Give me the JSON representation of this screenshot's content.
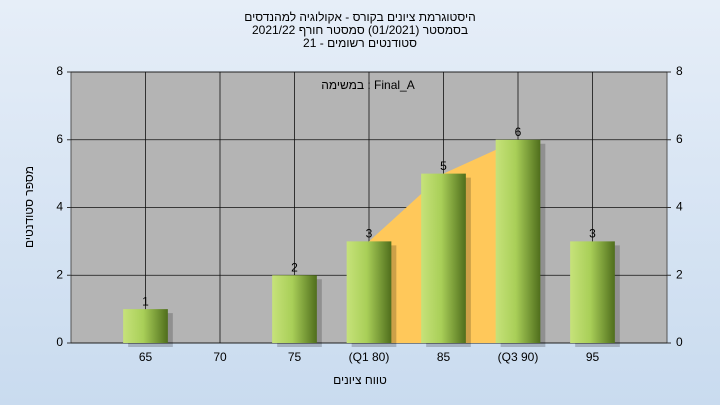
{
  "chart_data": {
    "type": "bar",
    "title": [
      "היסטוגרמת ציונים בקורס - אקולוגיה למהנדסים",
      "בסמסטר  (01/2021)  סמסטר חורף 2021/22",
      "סטודנטים רשומים - 21"
    ],
    "annotation": "במשימה : Final_A",
    "x_label": "טווח ציונים",
    "y_label": "מספר סטודנטים",
    "categories": [
      "65",
      "70",
      "75",
      "(Q1 80)",
      "85",
      "(Q3 90)",
      "95"
    ],
    "values": [
      1,
      0,
      2,
      3,
      5,
      6,
      3
    ],
    "color": "#9ccc4a",
    "quartile_color": "#ffc85a",
    "ylim": [
      0,
      8
    ],
    "yticks": [
      0,
      2,
      4,
      6,
      8
    ],
    "y2lim": [
      0,
      8
    ],
    "y2ticks": [
      0,
      2,
      4,
      6,
      8
    ],
    "grid": true
  }
}
